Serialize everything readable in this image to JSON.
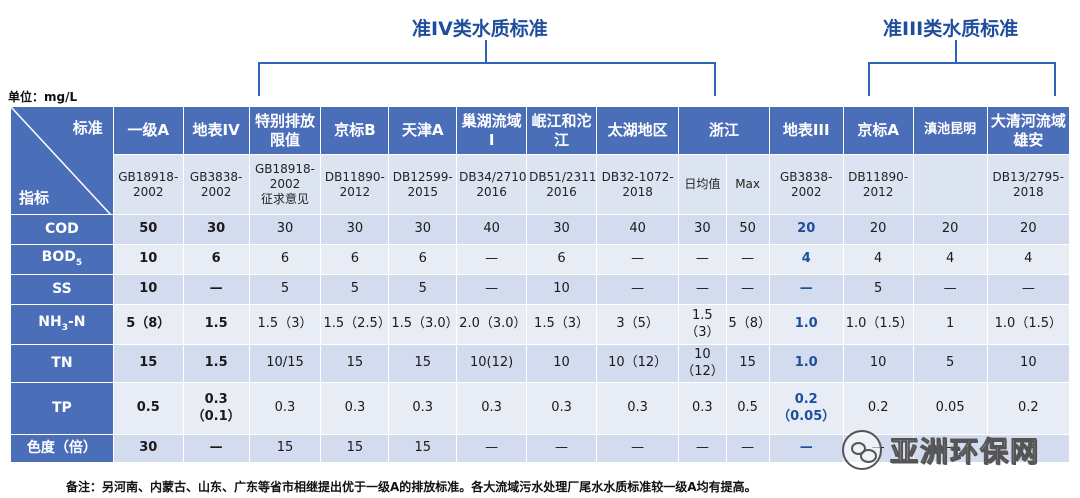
{
  "groups": {
    "iv_title": "准IV类水质标准",
    "iii_title": "准III类水质标准"
  },
  "unit": "单位：mg/L",
  "corner": {
    "standard": "标准",
    "indicator": "指标"
  },
  "columns": [
    "一级A",
    "地表IV",
    "特别排放限值",
    "京标B",
    "天津A",
    "巢湖流域 I",
    "岷江和沱江",
    "太湖地区",
    "浙江",
    "地表III",
    "京标A",
    "滇池昆明",
    "大清河流域雄安"
  ],
  "standards": {
    "c1": "GB18918-2002",
    "c2": "GB3838-2002",
    "c3a": "GB18918-2002",
    "c3b": "征求意见",
    "c4": "DB11890-2012",
    "c5": "DB12599-2015",
    "c6": "DB34/2710-2016",
    "c7": "DB51/2311-2016",
    "c8": "DB32-1072-2018",
    "c9a": "日均值",
    "c9b": "Max",
    "c10": "GB3838-2002",
    "c11": "DB11890-2012",
    "c12": "",
    "c13": "DB13/2795-2018"
  },
  "rows": [
    {
      "label": "COD",
      "values": [
        "50",
        "30",
        "30",
        "30",
        "30",
        "40",
        "30",
        "40",
        "30",
        "50",
        "20",
        "20",
        "20",
        "20"
      ]
    },
    {
      "label_main": "BOD",
      "label_sub": "5",
      "values": [
        "10",
        "6",
        "6",
        "6",
        "6",
        "—",
        "6",
        "—",
        "—",
        "—",
        "4",
        "4",
        "4",
        "4"
      ]
    },
    {
      "label": "SS",
      "values": [
        "10",
        "—",
        "5",
        "5",
        "5",
        "—",
        "10",
        "—",
        "—",
        "—",
        "—",
        "5",
        "—",
        "—"
      ]
    },
    {
      "label_main": "NH",
      "label_sub": "3",
      "label_tail": "-N",
      "values": [
        "5（8）",
        "1.5",
        "1.5（3）",
        "1.5（2.5）",
        "1.5（3.0）",
        "2.0（3.0）",
        "1.5（3）",
        "3（5）",
        "1.5（3）",
        "5（8）",
        "1.0",
        "1.0（1.5）",
        "1",
        "1.0（1.5）"
      ]
    },
    {
      "label": "TN",
      "values": [
        "15",
        "1.5",
        "10/15",
        "15",
        "15",
        "10(12)",
        "10",
        "10（12）",
        "10（12）",
        "15",
        "1.0",
        "10",
        "5",
        "10"
      ]
    },
    {
      "label": "TP",
      "values": [
        "0.5",
        "0.3（0.1）",
        "0.3",
        "0.3",
        "0.3",
        "0.3",
        "0.3",
        "0.3",
        "0.3",
        "0.5",
        "0.2（0.05）",
        "0.2",
        "0.05",
        "0.2"
      ]
    },
    {
      "label": "色度（倍）",
      "values": [
        "30",
        "—",
        "15",
        "15",
        "15",
        "—",
        "—",
        "—",
        "—",
        "—",
        "—",
        "—",
        "—",
        "—"
      ]
    }
  ],
  "note": "备注：另河南、内蒙古、山东、广东等省市相继提出优于一级A的排放标准。各大流域污水处理厂尾水水质标准较一级A均有提高。",
  "watermark": "亚洲环保网"
}
